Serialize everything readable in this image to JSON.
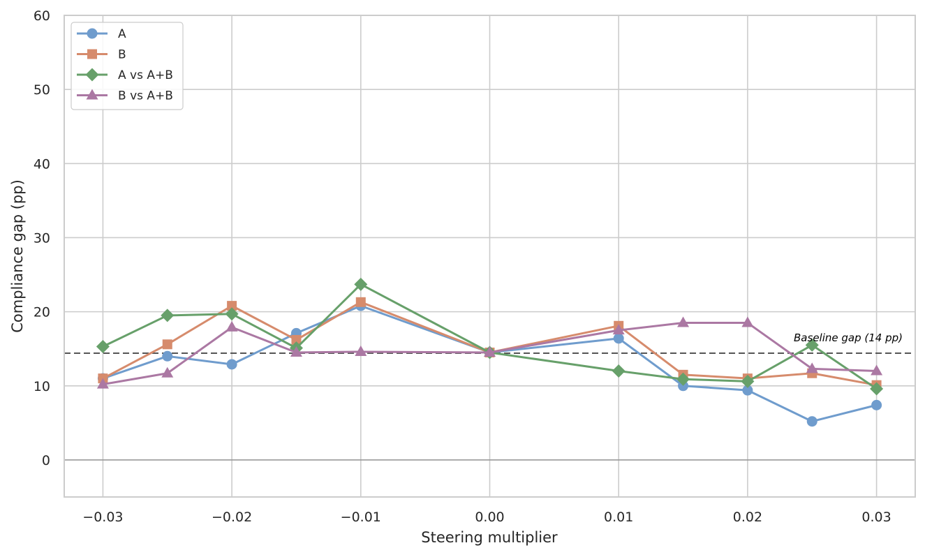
{
  "chart_data": {
    "type": "line",
    "title": "",
    "xlabel": "Steering multiplier",
    "ylabel": "Compliance gap (pp)",
    "xlim": [
      -0.033,
      0.033
    ],
    "ylim": [
      -5,
      60
    ],
    "xticks": [
      -0.03,
      -0.02,
      -0.01,
      0.0,
      0.01,
      0.02,
      0.03
    ],
    "xtick_labels": [
      "−0.03",
      "−0.02",
      "−0.01",
      "0.00",
      "0.01",
      "0.02",
      "0.03"
    ],
    "yticks": [
      0,
      10,
      20,
      30,
      40,
      50,
      60
    ],
    "ytick_labels": [
      "0",
      "10",
      "20",
      "30",
      "40",
      "50",
      "60"
    ],
    "grid": true,
    "legend_position": "top-left",
    "x": [
      -0.03,
      -0.025,
      -0.02,
      -0.015,
      -0.01,
      0.0,
      0.01,
      0.015,
      0.02,
      0.025,
      0.03
    ],
    "series": [
      {
        "name": "A",
        "color": "#6f9ccd",
        "marker": "circle",
        "values": [
          11.0,
          14.0,
          12.9,
          17.1,
          20.8,
          14.5,
          16.4,
          10.0,
          9.4,
          5.2,
          7.4
        ]
      },
      {
        "name": "B",
        "color": "#d68b6c",
        "marker": "square",
        "values": [
          11.0,
          15.6,
          20.8,
          16.2,
          21.3,
          14.5,
          18.1,
          11.5,
          11.0,
          11.7,
          10.1
        ]
      },
      {
        "name": "A vs A+B",
        "color": "#67a06a",
        "marker": "diamond",
        "values": [
          15.3,
          19.5,
          19.7,
          15.1,
          23.7,
          14.5,
          12.0,
          10.9,
          10.6,
          15.5,
          9.6
        ]
      },
      {
        "name": "B vs A+B",
        "color": "#ab78a3",
        "marker": "triangle",
        "values": [
          10.2,
          11.7,
          17.9,
          14.5,
          14.6,
          14.5,
          17.5,
          18.5,
          18.5,
          12.3,
          12.0
        ]
      }
    ],
    "baseline": {
      "value": 14.4,
      "label": "Baseline gap (14 pp)",
      "color": "#555555"
    },
    "zero_line_color": "#999999"
  }
}
